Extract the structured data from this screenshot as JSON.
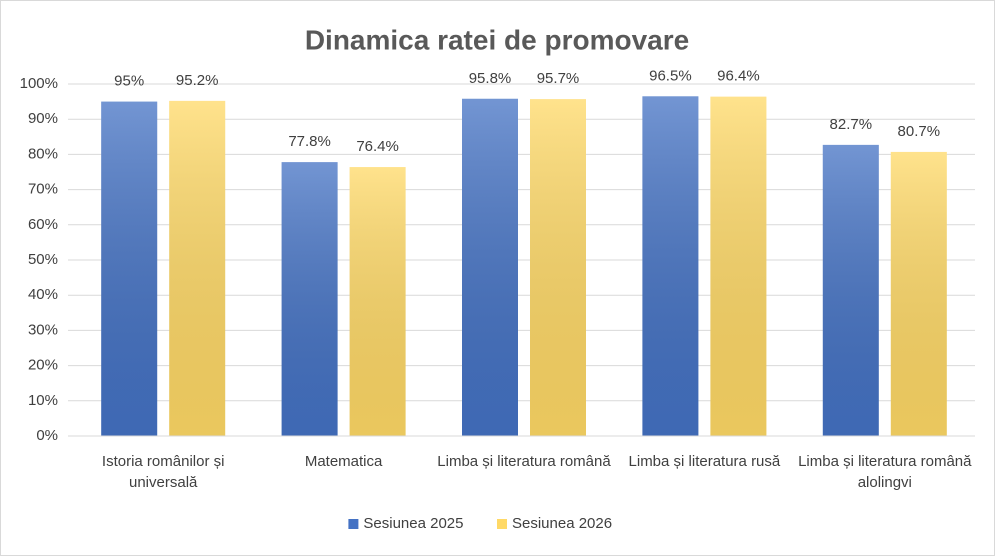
{
  "chart_data": {
    "type": "bar",
    "title": "Dinamica ratei de promovare",
    "categories": [
      "Istoria românilor și universală",
      "Matematica",
      "Limba și literatura română",
      "Limba și literatura rusă",
      "Limba și literatura română alolingvi"
    ],
    "series": [
      {
        "name": "Sesiunea 2025",
        "color": "#4472c4",
        "values": [
          95,
          77.8,
          95.8,
          96.5,
          82.7
        ],
        "value_labels": [
          "95%",
          "77.8%",
          "95.8%",
          "96.5%",
          "82.7%"
        ]
      },
      {
        "name": "Sesiunea 2026",
        "color": "#ffd966",
        "values": [
          95.2,
          76.4,
          95.7,
          96.4,
          80.7
        ],
        "value_labels": [
          "95.2%",
          "76.4%",
          "95.7%",
          "96.4%",
          "80.7%"
        ]
      }
    ],
    "ylim": [
      0,
      100
    ],
    "yticks": [
      {
        "value": 0,
        "label": "0%"
      },
      {
        "value": 10,
        "label": "10%"
      },
      {
        "value": 20,
        "label": "20%"
      },
      {
        "value": 30,
        "label": "30%"
      },
      {
        "value": 40,
        "label": "40%"
      },
      {
        "value": 50,
        "label": "50%"
      },
      {
        "value": 60,
        "label": "60%"
      },
      {
        "value": 70,
        "label": "70%"
      },
      {
        "value": 80,
        "label": "80%"
      },
      {
        "value": 90,
        "label": "90%"
      },
      {
        "value": 100,
        "label": "100%"
      }
    ],
    "grid": true,
    "legend": "bottom"
  }
}
